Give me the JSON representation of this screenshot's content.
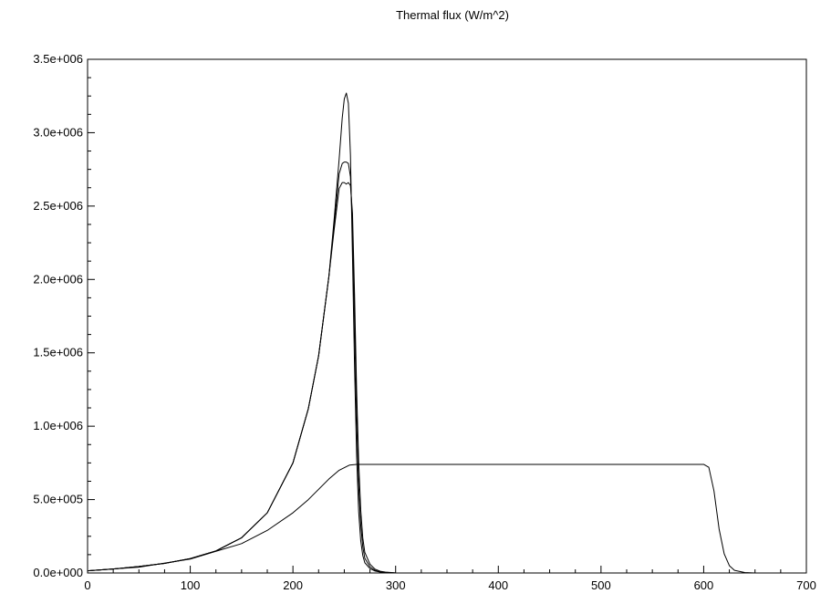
{
  "chart_data": {
    "type": "line",
    "title": "Thermal flux (W/m^2)",
    "xlabel": "",
    "ylabel": "",
    "xlim": [
      0,
      700
    ],
    "ylim": [
      0,
      3500000
    ],
    "x_ticks": [
      0,
      100,
      200,
      300,
      400,
      500,
      600,
      700
    ],
    "x_tick_labels": [
      "0",
      "100",
      "200",
      "300",
      "400",
      "500",
      "600",
      "700"
    ],
    "y_ticks": [
      0,
      500000,
      1000000,
      1500000,
      2000000,
      2500000,
      3000000,
      3500000
    ],
    "y_tick_labels": [
      "0.0e+000",
      "5.0e+005",
      "1.0e+006",
      "1.5e+006",
      "2.0e+006",
      "2.5e+006",
      "3.0e+006",
      "3.5e+006"
    ],
    "grid": false,
    "legend": "none",
    "line_color": "#000000",
    "series": [
      {
        "x": [
          0,
          25,
          50,
          75,
          100,
          125,
          150,
          175,
          200,
          215,
          225,
          235,
          240,
          245,
          248,
          250,
          252,
          254,
          256,
          258,
          260,
          262,
          264,
          266,
          268,
          270,
          275,
          280,
          285,
          290,
          300
        ],
        "values": [
          15000,
          27000,
          44000,
          65000,
          98000,
          150000,
          240000,
          410000,
          750000,
          1120000,
          1480000,
          2020000,
          2400000,
          2820000,
          3100000,
          3230000,
          3270000,
          3200000,
          2850000,
          2150000,
          1400000,
          800000,
          420000,
          220000,
          120000,
          70000,
          30000,
          13000,
          6000,
          3000,
          0
        ]
      },
      {
        "x": [
          0,
          25,
          50,
          75,
          100,
          125,
          150,
          175,
          200,
          215,
          225,
          235,
          240,
          245,
          248,
          250,
          252,
          254,
          256,
          258,
          260,
          262,
          264,
          266,
          268,
          270,
          275,
          280,
          285,
          290,
          300
        ],
        "values": [
          15000,
          27000,
          44000,
          65000,
          98000,
          150000,
          240000,
          410000,
          750000,
          1120000,
          1480000,
          2020000,
          2360000,
          2720000,
          2790000,
          2800000,
          2800000,
          2790000,
          2700000,
          2350000,
          1700000,
          1050000,
          600000,
          330000,
          180000,
          100000,
          42000,
          18000,
          8000,
          4000,
          0
        ]
      },
      {
        "x": [
          0,
          25,
          50,
          75,
          100,
          125,
          150,
          175,
          200,
          215,
          225,
          235,
          240,
          245,
          248,
          250,
          252,
          254,
          256,
          258,
          260,
          262,
          264,
          266,
          268,
          270,
          275,
          280,
          285,
          290,
          300,
          310
        ],
        "values": [
          15000,
          27000,
          44000,
          65000,
          98000,
          150000,
          240000,
          410000,
          750000,
          1120000,
          1480000,
          2020000,
          2330000,
          2620000,
          2660000,
          2660000,
          2650000,
          2660000,
          2640000,
          2450000,
          1900000,
          1250000,
          760000,
          430000,
          240000,
          140000,
          60000,
          26000,
          12000,
          6000,
          1000,
          0
        ]
      },
      {
        "x": [
          0,
          50,
          100,
          150,
          175,
          200,
          215,
          225,
          235,
          245,
          255,
          262,
          270,
          300,
          400,
          500,
          590,
          600,
          605,
          610,
          615,
          620,
          625,
          630,
          640,
          650
        ],
        "values": [
          15000,
          40000,
          95000,
          200000,
          290000,
          410000,
          500000,
          570000,
          640000,
          700000,
          735000,
          740000,
          740000,
          740000,
          740000,
          740000,
          740000,
          740000,
          720000,
          560000,
          300000,
          130000,
          50000,
          18000,
          3000,
          0
        ]
      }
    ]
  }
}
